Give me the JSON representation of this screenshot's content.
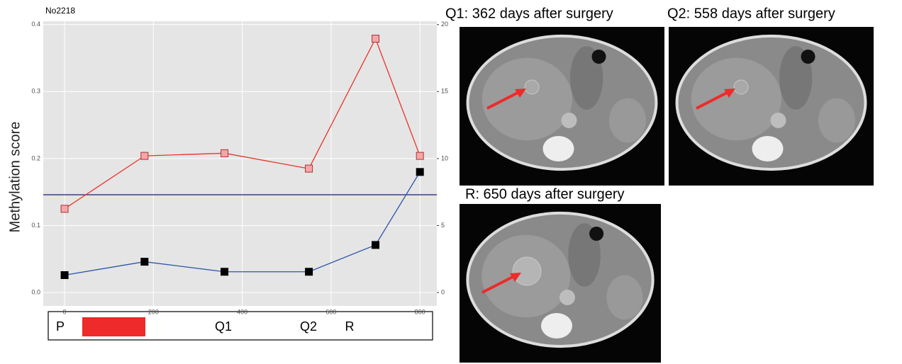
{
  "chart_data": {
    "type": "line",
    "title": "No2218",
    "y_label": "Methylation score",
    "x": [
      0,
      180,
      360,
      550,
      700,
      800
    ],
    "series": [
      {
        "color": "#e8352b",
        "marker_color": "#f4a6a9",
        "values": [
          0.125,
          0.204,
          0.208,
          0.185,
          0.379,
          0.204
        ]
      },
      {
        "color": "#2c54a8",
        "marker_color": "#000000",
        "values": [
          0.026,
          0.046,
          0.031,
          0.031,
          0.071,
          0.18
        ]
      }
    ],
    "hlines": [
      {
        "value": 0.146,
        "color": "#3a3f7a"
      }
    ],
    "xlim": [
      -48,
      838
    ],
    "xticks": [
      0,
      200,
      400,
      600,
      800
    ],
    "ylim": [
      -0.02,
      0.405
    ],
    "yticks": [
      {
        "value": 0,
        "label": "0.0"
      },
      0.1,
      0.2,
      0.3,
      0.4
    ],
    "y2lim": [
      -1,
      20.25
    ],
    "y2ticks": [
      0,
      5,
      10,
      15,
      20
    ],
    "grid": true
  },
  "timeline": {
    "labels": [
      "P",
      "Q1",
      "Q2",
      "R"
    ]
  },
  "images": [
    {
      "caption": "Q1: 362 days after surgery"
    },
    {
      "caption": "Q2: 558 days after surgery"
    },
    {
      "caption": "R: 650 days after surgery"
    }
  ]
}
